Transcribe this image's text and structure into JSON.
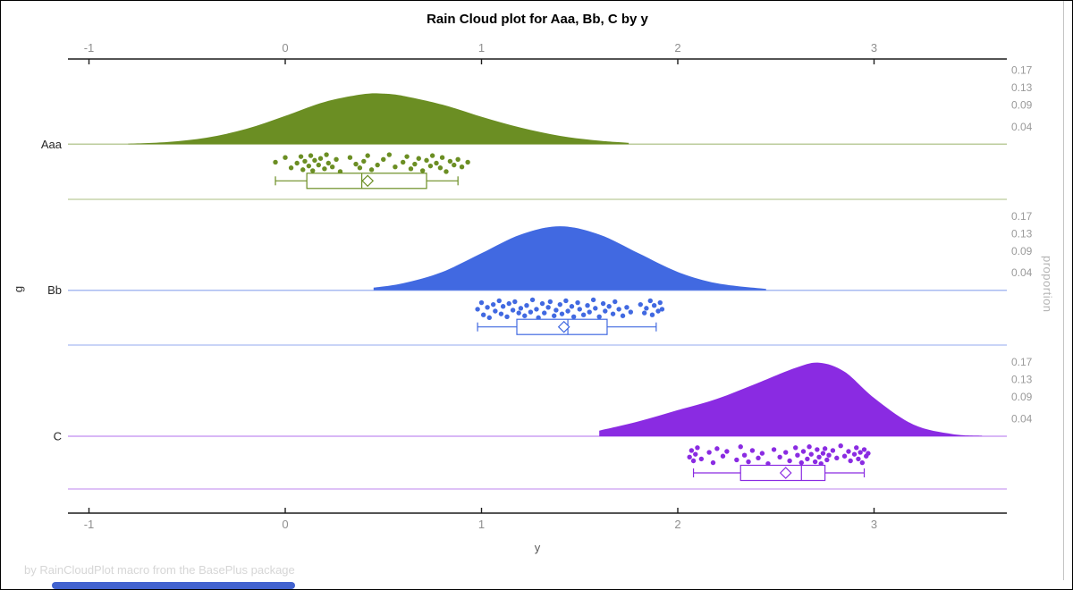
{
  "title": "Rain Cloud plot for Aaa, Bb, C by y",
  "footer": "by RainCloudPlot macro from the BasePlus package",
  "axes": {
    "x": {
      "label": "y",
      "ticks": [
        "-1",
        "0",
        "1",
        "2",
        "3"
      ],
      "tick_values": [
        -1,
        0,
        1,
        2,
        3
      ]
    },
    "y_left": {
      "label": "g",
      "categories": [
        "Aaa",
        "Bb",
        "C"
      ]
    },
    "y_right": {
      "label": "proportion",
      "ticks": [
        "0.17",
        "0.13",
        "0.09",
        "0.04"
      ],
      "tick_values": [
        0.17,
        0.13,
        0.09,
        0.04
      ]
    }
  },
  "colors": {
    "group_aaa": "#6B8E23",
    "group_bb": "#4169E1",
    "group_c": "#8A2BE2",
    "axis_line": "#1c1c1c",
    "tick_label": "#8f8f8f",
    "category_label": "#262626",
    "right_tick_label": "#9a9a9a",
    "footer_text": "#d6d6d6",
    "scrollbar_thumb": "#4263cf"
  },
  "chart_data": {
    "type": "raincloud",
    "title": "Rain Cloud plot for Aaa, Bb, C by y",
    "xlabel": "y",
    "ylabel_left": "g",
    "ylabel_right": "proportion",
    "x_ticks": [
      -1,
      0,
      1,
      2,
      3
    ],
    "x_range": [
      -1.11,
      3.68
    ],
    "proportion_ticks": [
      0.17,
      0.13,
      0.09,
      0.04
    ],
    "groups": [
      {
        "name": "Aaa",
        "color": "#6B8E23",
        "density": {
          "x": [
            -0.8,
            -0.6,
            -0.4,
            -0.2,
            0.0,
            0.2,
            0.4,
            0.5,
            0.6,
            0.8,
            1.0,
            1.2,
            1.4,
            1.6,
            1.75
          ],
          "proportion": [
            0.001,
            0.005,
            0.015,
            0.035,
            0.065,
            0.097,
            0.115,
            0.116,
            0.111,
            0.091,
            0.063,
            0.038,
            0.019,
            0.008,
            0.003
          ]
        },
        "box": {
          "whisker_low": -0.05,
          "q1": 0.11,
          "median": 0.39,
          "mean": 0.42,
          "q3": 0.72,
          "whisker_high": 0.88
        },
        "points": [
          [
            -0.05,
            0.45
          ],
          [
            0.0,
            0.2
          ],
          [
            0.03,
            0.75
          ],
          [
            0.06,
            0.5
          ],
          [
            0.08,
            0.15
          ],
          [
            0.09,
            0.85
          ],
          [
            0.1,
            0.4
          ],
          [
            0.12,
            0.65
          ],
          [
            0.13,
            0.1
          ],
          [
            0.14,
            0.9
          ],
          [
            0.15,
            0.35
          ],
          [
            0.17,
            0.6
          ],
          [
            0.18,
            0.25
          ],
          [
            0.2,
            0.8
          ],
          [
            0.21,
            0.05
          ],
          [
            0.22,
            0.5
          ],
          [
            0.24,
            0.7
          ],
          [
            0.26,
            0.3
          ],
          [
            0.28,
            0.95
          ],
          [
            0.33,
            0.2
          ],
          [
            0.36,
            0.55
          ],
          [
            0.38,
            0.75
          ],
          [
            0.4,
            0.4
          ],
          [
            0.42,
            0.1
          ],
          [
            0.44,
            0.85
          ],
          [
            0.47,
            0.6
          ],
          [
            0.5,
            0.3
          ],
          [
            0.53,
            0.05
          ],
          [
            0.56,
            0.7
          ],
          [
            0.6,
            0.45
          ],
          [
            0.62,
            0.15
          ],
          [
            0.64,
            0.8
          ],
          [
            0.66,
            0.55
          ],
          [
            0.68,
            0.25
          ],
          [
            0.7,
            0.9
          ],
          [
            0.72,
            0.35
          ],
          [
            0.74,
            0.65
          ],
          [
            0.75,
            0.1
          ],
          [
            0.77,
            0.5
          ],
          [
            0.79,
            0.75
          ],
          [
            0.8,
            0.2
          ],
          [
            0.82,
            0.95
          ],
          [
            0.84,
            0.4
          ],
          [
            0.86,
            0.6
          ],
          [
            0.88,
            0.3
          ],
          [
            0.9,
            0.7
          ],
          [
            0.93,
            0.45
          ]
        ]
      },
      {
        "name": "Bb",
        "color": "#4169E1",
        "density": {
          "x": [
            0.45,
            0.6,
            0.8,
            1.0,
            1.2,
            1.4,
            1.6,
            1.8,
            2.0,
            2.2,
            2.45
          ],
          "proportion": [
            0.006,
            0.016,
            0.042,
            0.085,
            0.128,
            0.147,
            0.128,
            0.085,
            0.042,
            0.016,
            0.003
          ]
        },
        "box": {
          "whisker_low": 0.98,
          "q1": 1.18,
          "median": 1.44,
          "mean": 1.42,
          "q3": 1.64,
          "whisker_high": 1.89
        },
        "points": [
          [
            0.98,
            0.5
          ],
          [
            1.0,
            0.15
          ],
          [
            1.01,
            0.8
          ],
          [
            1.03,
            0.4
          ],
          [
            1.04,
            0.95
          ],
          [
            1.06,
            0.25
          ],
          [
            1.07,
            0.6
          ],
          [
            1.09,
            0.05
          ],
          [
            1.1,
            0.75
          ],
          [
            1.11,
            0.35
          ],
          [
            1.13,
            0.9
          ],
          [
            1.14,
            0.2
          ],
          [
            1.16,
            0.55
          ],
          [
            1.17,
            0.1
          ],
          [
            1.19,
            0.7
          ],
          [
            1.2,
            0.45
          ],
          [
            1.22,
            0.85
          ],
          [
            1.23,
            0.3
          ],
          [
            1.25,
            0.65
          ],
          [
            1.26,
            0.0
          ],
          [
            1.28,
            0.5
          ],
          [
            1.29,
            0.95
          ],
          [
            1.31,
            0.2
          ],
          [
            1.32,
            0.7
          ],
          [
            1.34,
            0.4
          ],
          [
            1.35,
            0.1
          ],
          [
            1.37,
            0.85
          ],
          [
            1.38,
            0.55
          ],
          [
            1.4,
            0.25
          ],
          [
            1.41,
            0.75
          ],
          [
            1.43,
            0.05
          ],
          [
            1.44,
            0.6
          ],
          [
            1.46,
            0.35
          ],
          [
            1.47,
            0.9
          ],
          [
            1.49,
            0.15
          ],
          [
            1.5,
            0.5
          ],
          [
            1.52,
            0.8
          ],
          [
            1.54,
            0.3
          ],
          [
            1.55,
            0.65
          ],
          [
            1.57,
            0.0
          ],
          [
            1.58,
            0.45
          ],
          [
            1.6,
            0.9
          ],
          [
            1.62,
            0.2
          ],
          [
            1.63,
            0.6
          ],
          [
            1.65,
            0.35
          ],
          [
            1.67,
            0.75
          ],
          [
            1.68,
            0.1
          ],
          [
            1.7,
            0.5
          ],
          [
            1.72,
            0.85
          ],
          [
            1.74,
            0.4
          ],
          [
            1.76,
            0.65
          ],
          [
            1.81,
            0.25
          ],
          [
            1.83,
            0.7
          ],
          [
            1.84,
            0.45
          ],
          [
            1.86,
            0.05
          ],
          [
            1.87,
            0.8
          ],
          [
            1.88,
            0.3
          ],
          [
            1.9,
            0.6
          ],
          [
            1.91,
            0.15
          ],
          [
            1.92,
            0.5
          ]
        ]
      },
      {
        "name": "C",
        "color": "#8A2BE2",
        "density": {
          "x": [
            1.6,
            1.8,
            2.0,
            2.2,
            2.4,
            2.6,
            2.72,
            2.85,
            3.0,
            3.2,
            3.4,
            3.55
          ],
          "proportion": [
            0.013,
            0.034,
            0.06,
            0.086,
            0.121,
            0.157,
            0.169,
            0.148,
            0.088,
            0.027,
            0.005,
            0.001
          ]
        },
        "box": {
          "whisker_low": 2.08,
          "q1": 2.32,
          "median": 2.63,
          "mean": 2.55,
          "q3": 2.75,
          "whisker_high": 2.95
        },
        "points": [
          [
            2.06,
            0.6
          ],
          [
            2.07,
            0.25
          ],
          [
            2.08,
            0.8
          ],
          [
            2.09,
            0.45
          ],
          [
            2.1,
            0.1
          ],
          [
            2.12,
            0.7
          ],
          [
            2.16,
            0.35
          ],
          [
            2.18,
            0.9
          ],
          [
            2.2,
            0.15
          ],
          [
            2.23,
            0.55
          ],
          [
            2.25,
            0.3
          ],
          [
            2.3,
            0.75
          ],
          [
            2.32,
            0.05
          ],
          [
            2.34,
            0.5
          ],
          [
            2.36,
            0.85
          ],
          [
            2.38,
            0.25
          ],
          [
            2.41,
            0.65
          ],
          [
            2.43,
            0.4
          ],
          [
            2.46,
            0.95
          ],
          [
            2.49,
            0.2
          ],
          [
            2.52,
            0.6
          ],
          [
            2.55,
            0.35
          ],
          [
            2.57,
            0.8
          ],
          [
            2.6,
            0.1
          ],
          [
            2.61,
            0.5
          ],
          [
            2.63,
            0.9
          ],
          [
            2.64,
            0.3
          ],
          [
            2.66,
            0.7
          ],
          [
            2.67,
            0.05
          ],
          [
            2.68,
            0.45
          ],
          [
            2.7,
            0.85
          ],
          [
            2.71,
            0.2
          ],
          [
            2.72,
            0.6
          ],
          [
            2.73,
            0.95
          ],
          [
            2.74,
            0.4
          ],
          [
            2.75,
            0.15
          ],
          [
            2.76,
            0.75
          ],
          [
            2.77,
            0.5
          ],
          [
            2.79,
            0.25
          ],
          [
            2.81,
            0.65
          ],
          [
            2.83,
            0.0
          ],
          [
            2.85,
            0.55
          ],
          [
            2.87,
            0.3
          ],
          [
            2.88,
            0.8
          ],
          [
            2.9,
            0.45
          ],
          [
            2.91,
            0.1
          ],
          [
            2.92,
            0.7
          ],
          [
            2.93,
            0.35
          ],
          [
            2.94,
            0.9
          ],
          [
            2.95,
            0.2
          ],
          [
            2.96,
            0.55
          ],
          [
            2.97,
            0.4
          ]
        ]
      }
    ]
  }
}
